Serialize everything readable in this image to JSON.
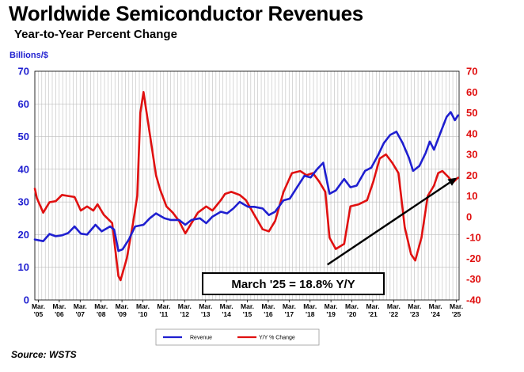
{
  "header": {
    "title": "Worldwide Semiconductor Revenues",
    "subtitle": "Year-to-Year Percent Change",
    "ylabel_left": "Billions/$"
  },
  "source": "Source: WSTS",
  "colors": {
    "revenue": "#1f1fd0",
    "yoy": "#e01010",
    "grid": "#bdbdbd",
    "arrow": "#000000"
  },
  "chart_data": {
    "type": "line",
    "title": "Worldwide Semiconductor Revenues",
    "subtitle": "Year-to-Year Percent Change",
    "ylabel_left": "Billions/$",
    "ylim_left": [
      0,
      70
    ],
    "ylim_right": [
      -40,
      70
    ],
    "yticks_left": [
      0,
      10,
      20,
      30,
      40,
      50,
      60,
      70
    ],
    "yticks_right": [
      -40,
      -30,
      -20,
      -10,
      0,
      10,
      20,
      30,
      40,
      50,
      60,
      70
    ],
    "xticks": [
      {
        "x": 2005.17,
        "line1": "Mar.",
        "line2": "'05"
      },
      {
        "x": 2006.17,
        "line1": "Mar.",
        "line2": "'06"
      },
      {
        "x": 2007.17,
        "line1": "Mar.",
        "line2": "'07"
      },
      {
        "x": 2008.17,
        "line1": "Mar.",
        "line2": "'08"
      },
      {
        "x": 2009.17,
        "line1": "Mar.",
        "line2": "'09"
      },
      {
        "x": 2010.17,
        "line1": "Mar.",
        "line2": "'10"
      },
      {
        "x": 2011.17,
        "line1": "Mar.",
        "line2": "'11"
      },
      {
        "x": 2012.17,
        "line1": "Mar.",
        "line2": "'12"
      },
      {
        "x": 2013.17,
        "line1": "Mar.",
        "line2": "'13"
      },
      {
        "x": 2014.17,
        "line1": "Mar.",
        "line2": "'14"
      },
      {
        "x": 2015.17,
        "line1": "Mar.",
        "line2": "'15"
      },
      {
        "x": 2016.17,
        "line1": "Mar.",
        "line2": "'16"
      },
      {
        "x": 2017.17,
        "line1": "Mar.",
        "line2": "'17"
      },
      {
        "x": 2018.17,
        "line1": "Mar.",
        "line2": "'18"
      },
      {
        "x": 2019.17,
        "line1": "Mar.",
        "line2": "'19"
      },
      {
        "x": 2020.17,
        "line1": "Mar.",
        "line2": "'20"
      },
      {
        "x": 2021.17,
        "line1": "Mar.",
        "line2": "'21"
      },
      {
        "x": 2022.17,
        "line1": "Mar.",
        "line2": "'22"
      },
      {
        "x": 2023.17,
        "line1": "Mar.",
        "line2": "'23"
      },
      {
        "x": 2024.17,
        "line1": "Mar.",
        "line2": "'24"
      },
      {
        "x": 2025.17,
        "line1": "Mar.",
        "line2": "'25"
      }
    ],
    "xlim": [
      2005.0,
      2025.3
    ],
    "grid": true,
    "legend_position": "bottom",
    "series": [
      {
        "name": "Revenue",
        "axis": "left",
        "color": "#1f1fd0",
        "points": [
          [
            2005.0,
            18.5
          ],
          [
            2005.4,
            18.0
          ],
          [
            2005.7,
            20.2
          ],
          [
            2006.0,
            19.5
          ],
          [
            2006.3,
            19.8
          ],
          [
            2006.6,
            20.5
          ],
          [
            2006.9,
            22.5
          ],
          [
            2007.2,
            20.3
          ],
          [
            2007.5,
            20.0
          ],
          [
            2007.9,
            23.0
          ],
          [
            2008.2,
            21.0
          ],
          [
            2008.6,
            22.5
          ],
          [
            2008.8,
            21.5
          ],
          [
            2009.0,
            15.0
          ],
          [
            2009.2,
            15.5
          ],
          [
            2009.5,
            18.5
          ],
          [
            2009.8,
            22.5
          ],
          [
            2010.2,
            23.0
          ],
          [
            2010.5,
            25.0
          ],
          [
            2010.8,
            26.5
          ],
          [
            2011.2,
            25.0
          ],
          [
            2011.5,
            24.5
          ],
          [
            2011.9,
            24.5
          ],
          [
            2012.2,
            23.0
          ],
          [
            2012.5,
            24.5
          ],
          [
            2012.9,
            25.0
          ],
          [
            2013.2,
            23.5
          ],
          [
            2013.5,
            25.5
          ],
          [
            2013.9,
            27.0
          ],
          [
            2014.2,
            26.5
          ],
          [
            2014.5,
            28.0
          ],
          [
            2014.8,
            30.0
          ],
          [
            2015.2,
            28.5
          ],
          [
            2015.5,
            28.5
          ],
          [
            2015.9,
            28.0
          ],
          [
            2016.2,
            26.0
          ],
          [
            2016.5,
            27.0
          ],
          [
            2016.9,
            30.5
          ],
          [
            2017.2,
            31.0
          ],
          [
            2017.5,
            34.0
          ],
          [
            2017.9,
            38.0
          ],
          [
            2018.2,
            37.5
          ],
          [
            2018.5,
            40.0
          ],
          [
            2018.8,
            42.0
          ],
          [
            2019.1,
            32.5
          ],
          [
            2019.4,
            33.5
          ],
          [
            2019.8,
            37.0
          ],
          [
            2020.1,
            34.5
          ],
          [
            2020.4,
            35.0
          ],
          [
            2020.8,
            39.5
          ],
          [
            2021.1,
            40.5
          ],
          [
            2021.4,
            44.0
          ],
          [
            2021.7,
            48.0
          ],
          [
            2022.0,
            50.5
          ],
          [
            2022.3,
            51.5
          ],
          [
            2022.6,
            48.0
          ],
          [
            2022.9,
            43.5
          ],
          [
            2023.1,
            39.5
          ],
          [
            2023.4,
            41.0
          ],
          [
            2023.7,
            45.0
          ],
          [
            2023.9,
            48.5
          ],
          [
            2024.1,
            46.0
          ],
          [
            2024.4,
            51.0
          ],
          [
            2024.7,
            56.0
          ],
          [
            2024.9,
            57.5
          ],
          [
            2025.1,
            55.0
          ],
          [
            2025.25,
            56.5
          ]
        ]
      },
      {
        "name": "Y/Y % Change",
        "axis": "right",
        "color": "#e01010",
        "points": [
          [
            2005.0,
            13.5
          ],
          [
            2005.1,
            9.0
          ],
          [
            2005.4,
            2.0
          ],
          [
            2005.7,
            7.0
          ],
          [
            2006.0,
            7.5
          ],
          [
            2006.3,
            10.5
          ],
          [
            2006.6,
            10.0
          ],
          [
            2006.9,
            9.5
          ],
          [
            2007.2,
            3.0
          ],
          [
            2007.5,
            5.0
          ],
          [
            2007.8,
            3.0
          ],
          [
            2008.0,
            6.0
          ],
          [
            2008.3,
            1.0
          ],
          [
            2008.7,
            -3.0
          ],
          [
            2009.0,
            -28.5
          ],
          [
            2009.1,
            -30.5
          ],
          [
            2009.4,
            -20.0
          ],
          [
            2009.7,
            -3.0
          ],
          [
            2009.9,
            10.0
          ],
          [
            2010.05,
            50.0
          ],
          [
            2010.2,
            60.0
          ],
          [
            2010.5,
            40.0
          ],
          [
            2010.8,
            20.0
          ],
          [
            2011.0,
            13.0
          ],
          [
            2011.3,
            5.0
          ],
          [
            2011.6,
            2.0
          ],
          [
            2011.9,
            -2.0
          ],
          [
            2012.2,
            -8.0
          ],
          [
            2012.5,
            -3.0
          ],
          [
            2012.8,
            2.0
          ],
          [
            2013.2,
            5.0
          ],
          [
            2013.5,
            3.0
          ],
          [
            2013.9,
            8.0
          ],
          [
            2014.1,
            11.0
          ],
          [
            2014.4,
            12.0
          ],
          [
            2014.8,
            10.5
          ],
          [
            2015.1,
            8.0
          ],
          [
            2015.5,
            1.0
          ],
          [
            2015.9,
            -6.0
          ],
          [
            2016.2,
            -7.0
          ],
          [
            2016.5,
            -2.0
          ],
          [
            2016.9,
            12.0
          ],
          [
            2017.3,
            21.0
          ],
          [
            2017.7,
            22.0
          ],
          [
            2018.0,
            20.0
          ],
          [
            2018.3,
            21.0
          ],
          [
            2018.6,
            17.0
          ],
          [
            2018.9,
            12.0
          ],
          [
            2019.1,
            -10.0
          ],
          [
            2019.4,
            -15.5
          ],
          [
            2019.8,
            -13.0
          ],
          [
            2020.1,
            5.0
          ],
          [
            2020.5,
            6.0
          ],
          [
            2020.9,
            8.0
          ],
          [
            2021.2,
            17.0
          ],
          [
            2021.5,
            28.0
          ],
          [
            2021.8,
            30.0
          ],
          [
            2022.1,
            26.0
          ],
          [
            2022.4,
            21.0
          ],
          [
            2022.7,
            -5.0
          ],
          [
            2023.0,
            -18.0
          ],
          [
            2023.2,
            -21.0
          ],
          [
            2023.5,
            -10.0
          ],
          [
            2023.8,
            10.0
          ],
          [
            2024.1,
            15.0
          ],
          [
            2024.3,
            21.0
          ],
          [
            2024.5,
            22.0
          ],
          [
            2024.8,
            19.0
          ],
          [
            2025.0,
            16.5
          ],
          [
            2025.25,
            18.8
          ]
        ]
      }
    ],
    "annotations": [
      {
        "type": "arrow",
        "from": [
          2019.0,
          -23.0
        ],
        "to": [
          2025.2,
          18.8
        ]
      },
      {
        "type": "text",
        "text": "March '25 = 18.8% Y/Y"
      }
    ],
    "legend": [
      {
        "label": "Revenue",
        "color": "#1f1fd0"
      },
      {
        "label": "Y/Y % Change",
        "color": "#e01010"
      }
    ]
  }
}
